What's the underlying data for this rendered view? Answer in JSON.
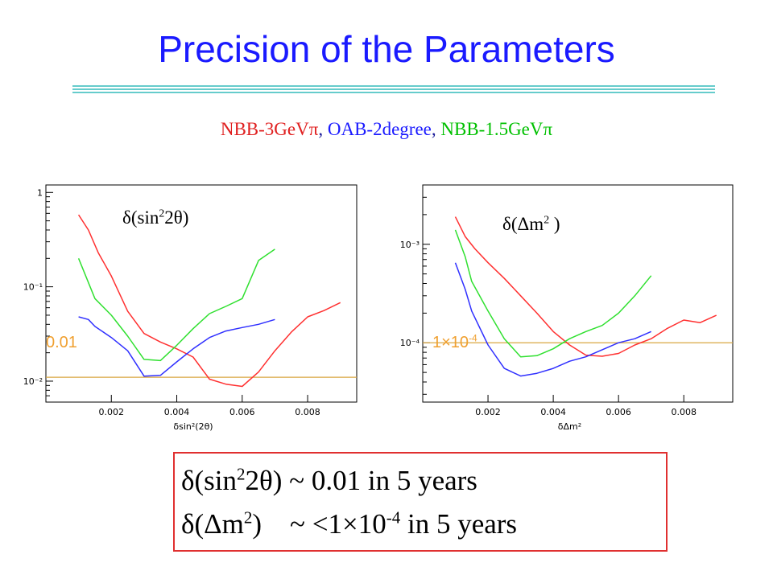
{
  "slide": {
    "title": "Precision of the Parameters"
  },
  "legend": {
    "items": [
      {
        "label": "NBB-3GeVπ",
        "color": "#e02020"
      },
      {
        "label": "OAB-2degree",
        "color": "#1a1aff"
      },
      {
        "label": "NBB-1.5GeVπ",
        "color": "#00c000"
      }
    ],
    "separator": ","
  },
  "colors": {
    "title": "#1a1aff",
    "threshold": "#d9a640",
    "threshold_text": "#f0a030",
    "box_border": "#e03030",
    "rule": "#66cccc"
  },
  "chart_data": [
    {
      "type": "line",
      "label": {
        "prefix": "δ(sin",
        "sup": "2",
        "suffix": "2θ)"
      },
      "xlabel": "δsin²(2θ)",
      "x_ticks": [
        "0.002",
        "0.004",
        "0.006",
        "0.008"
      ],
      "y_ticks": [
        "1",
        "10⁻¹",
        "10⁻²"
      ],
      "xlim": [
        0,
        0.0095
      ],
      "ylim": [
        0.006,
        1.2
      ],
      "yscale": "log",
      "threshold": {
        "label": "0.01",
        "value": 0.011
      },
      "series": [
        {
          "color": "#ff3030",
          "x": [
            0.001,
            0.0013,
            0.0016,
            0.002,
            0.0025,
            0.003,
            0.0035,
            0.004,
            0.0045,
            0.005,
            0.0055,
            0.006,
            0.0065,
            0.007,
            0.0075,
            0.008,
            0.0085,
            0.009
          ],
          "y": [
            0.58,
            0.4,
            0.23,
            0.13,
            0.055,
            0.032,
            0.026,
            0.022,
            0.018,
            0.0105,
            0.0093,
            0.0088,
            0.0125,
            0.021,
            0.033,
            0.048,
            0.056,
            0.068
          ]
        },
        {
          "color": "#30e030",
          "x": [
            0.001,
            0.0015,
            0.002,
            0.0025,
            0.003,
            0.0035,
            0.004,
            0.0045,
            0.005,
            0.0055,
            0.006,
            0.0065,
            0.007
          ],
          "y": [
            0.2,
            0.075,
            0.05,
            0.03,
            0.017,
            0.0165,
            0.024,
            0.036,
            0.052,
            0.062,
            0.075,
            0.19,
            0.25
          ]
        },
        {
          "color": "#3030ff",
          "x": [
            0.001,
            0.0013,
            0.0015,
            0.002,
            0.0025,
            0.003,
            0.0035,
            0.004,
            0.0045,
            0.005,
            0.0055,
            0.006,
            0.0065,
            0.007
          ],
          "y": [
            0.048,
            0.045,
            0.038,
            0.029,
            0.021,
            0.0113,
            0.0115,
            0.016,
            0.022,
            0.029,
            0.034,
            0.037,
            0.04,
            0.045
          ]
        }
      ]
    },
    {
      "type": "line",
      "label": {
        "prefix": "δ(Δm",
        "sup": "2",
        "suffix": " )"
      },
      "xlabel": "δΔm²",
      "x_ticks": [
        "0.002",
        "0.004",
        "0.006",
        "0.008"
      ],
      "y_ticks": [
        "10⁻³",
        "10⁻⁴"
      ],
      "xlim": [
        0,
        0.0095
      ],
      "ylim": [
        2.5e-05,
        0.004
      ],
      "yscale": "log",
      "threshold": {
        "label": "1×10⁻⁴",
        "prefix": "1×10",
        "sup": "-4",
        "value": 0.0001
      },
      "series": [
        {
          "color": "#ff3030",
          "x": [
            0.001,
            0.0013,
            0.0016,
            0.002,
            0.0025,
            0.003,
            0.0035,
            0.004,
            0.0045,
            0.005,
            0.0055,
            0.006,
            0.0065,
            0.007,
            0.0075,
            0.008,
            0.0085,
            0.009
          ],
          "y": [
            0.0019,
            0.0012,
            0.0009,
            0.00065,
            0.00045,
            0.0003,
            0.0002,
            0.00013,
            9.5e-05,
            7.5e-05,
            7.3e-05,
            7.8e-05,
            9.5e-05,
            0.00011,
            0.00014,
            0.00017,
            0.00016,
            0.00019
          ]
        },
        {
          "color": "#30e030",
          "x": [
            0.001,
            0.0013,
            0.0015,
            0.002,
            0.0025,
            0.003,
            0.0035,
            0.004,
            0.0045,
            0.005,
            0.0055,
            0.006,
            0.0065,
            0.007
          ],
          "y": [
            0.0014,
            0.00075,
            0.00042,
            0.00021,
            0.00011,
            7.2e-05,
            7.4e-05,
            8.7e-05,
            0.00011,
            0.00013,
            0.00015,
            0.0002,
            0.0003,
            0.00048
          ]
        },
        {
          "color": "#3030ff",
          "x": [
            0.001,
            0.0013,
            0.0015,
            0.002,
            0.0025,
            0.003,
            0.0035,
            0.004,
            0.0045,
            0.005,
            0.0055,
            0.006,
            0.0065,
            0.007
          ],
          "y": [
            0.00065,
            0.00035,
            0.00021,
            9.5e-05,
            5.5e-05,
            4.6e-05,
            4.9e-05,
            5.5e-05,
            6.5e-05,
            7.2e-05,
            8.5e-05,
            0.0001,
            0.00011,
            0.00013
          ]
        }
      ]
    }
  ],
  "summary": {
    "line1": {
      "prefix": "δ(sin",
      "sup": "2",
      "suffix": "2θ) ~ 0.01 in 5 years"
    },
    "line2": {
      "prefix": "δ(Δm",
      "sup": "2",
      "middle": ")    ~ <1×10",
      "sup2": "-4",
      "suffix": " in 5 years"
    }
  }
}
